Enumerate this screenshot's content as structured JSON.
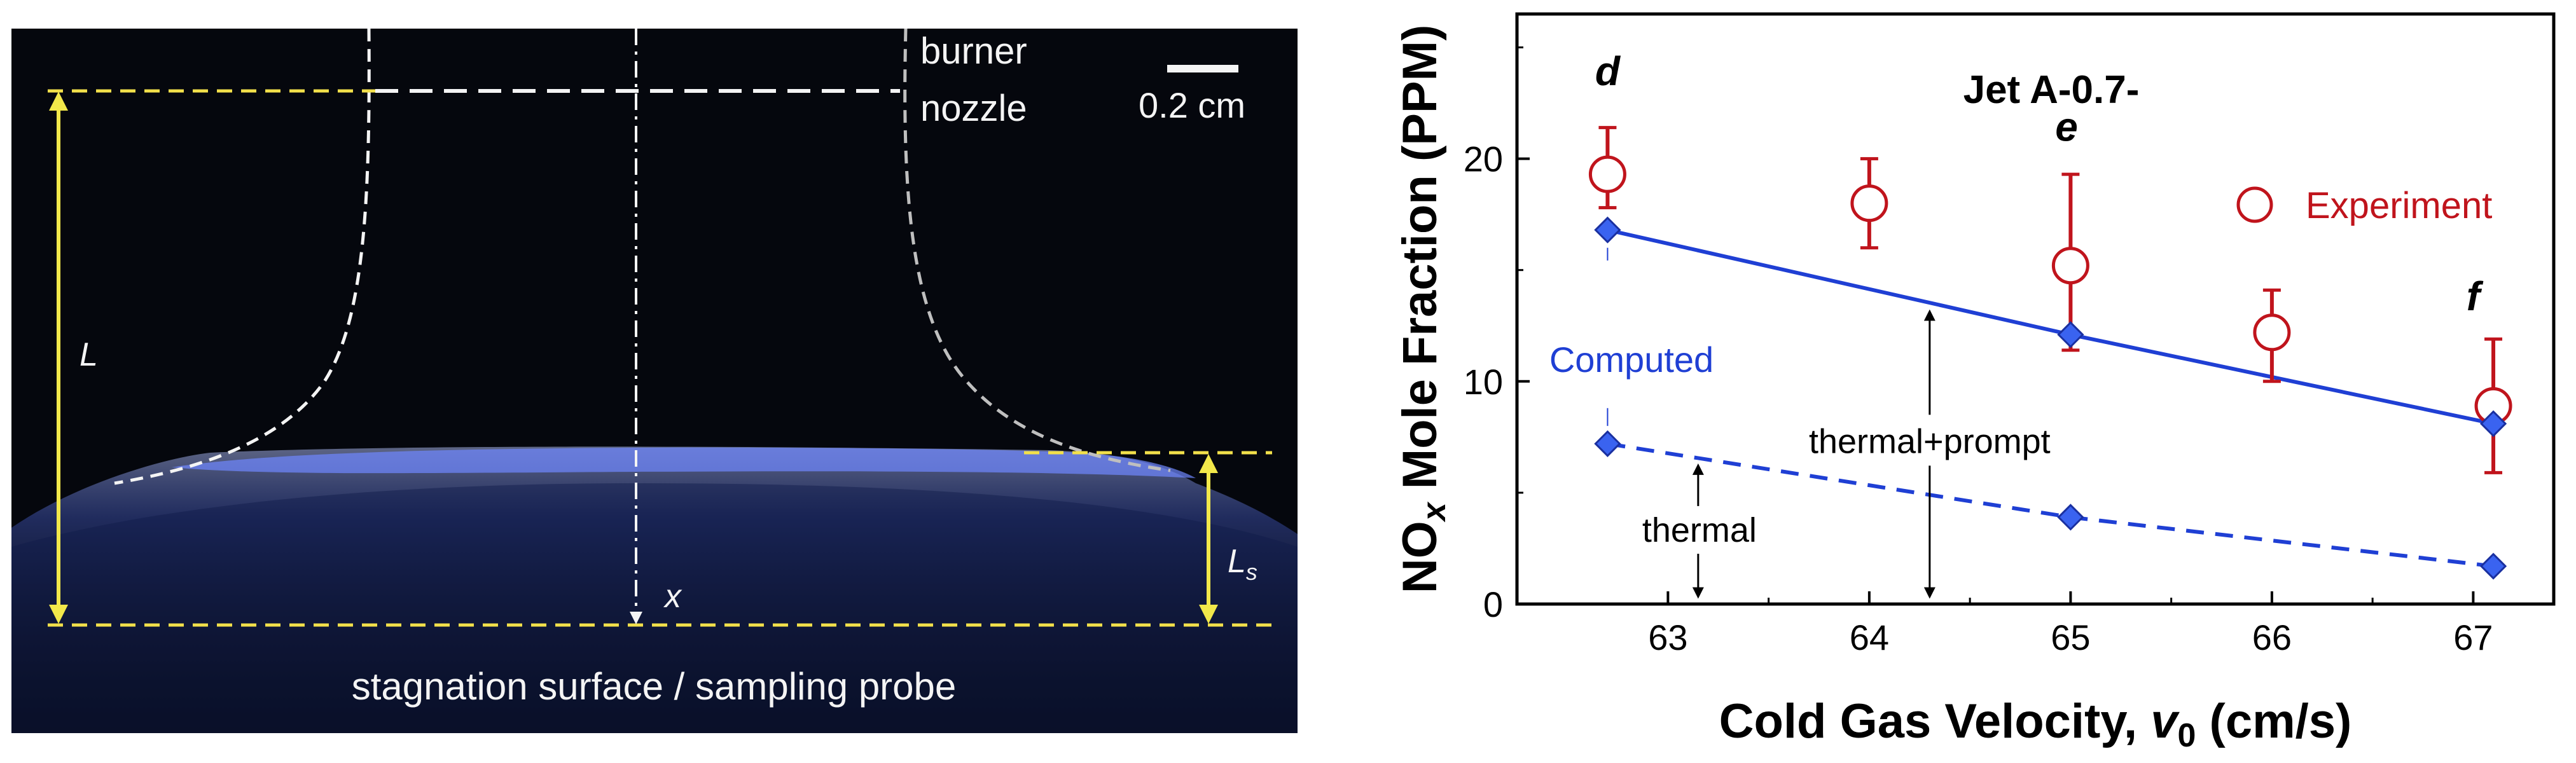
{
  "photo": {
    "burner_label_line1": "burner",
    "burner_label_line2": "nozzle",
    "scale_bar_label": "0.2 cm",
    "label_L": "L",
    "label_Ls_main": "L",
    "label_Ls_sub": "s",
    "label_x": "x",
    "bottom_label": "stagnation surface / sampling probe",
    "colors": {
      "background": "#05070d",
      "guide_lines": "#f2e04a",
      "arrows": "#f2e84a",
      "nozzle_outline": "#f4f4f4",
      "flame": "#4a6bd8"
    }
  },
  "chart_data": {
    "type": "scatter",
    "title": "Jet A-0.7-",
    "xlabel_prefix": "Cold Gas Velocity, ",
    "xlabel_var": "v",
    "xlabel_sub": "0",
    "xlabel_suffix": " (cm/s)",
    "ylabel_prefix": "NO",
    "ylabel_sub": "x",
    "ylabel_suffix": " Mole Fraction (PPM)",
    "xlim": [
      62.25,
      67.4
    ],
    "ylim": [
      0,
      26.5
    ],
    "xticks": [
      63,
      64,
      65,
      66,
      67
    ],
    "yticks": [
      0,
      10,
      20
    ],
    "experiment": {
      "name": "Experiment",
      "color": "#c0141c",
      "points": [
        {
          "x": 62.7,
          "y": 19.3,
          "err_lo": 1.5,
          "err_hi": 2.1
        },
        {
          "x": 64.0,
          "y": 18.0,
          "err_lo": 2.0,
          "err_hi": 2.0
        },
        {
          "x": 65.0,
          "y": 15.2,
          "err_lo": 3.8,
          "err_hi": 4.1
        },
        {
          "x": 66.0,
          "y": 12.2,
          "err_lo": 2.2,
          "err_hi": 1.9
        },
        {
          "x": 67.1,
          "y": 8.9,
          "err_lo": 3.0,
          "err_hi": 3.0
        }
      ]
    },
    "computed": {
      "label": "Computed",
      "color": "#1f3fd4",
      "thermal_prompt": [
        {
          "x": 62.7,
          "y": 16.8
        },
        {
          "x": 65.0,
          "y": 12.1
        },
        {
          "x": 67.1,
          "y": 8.1
        }
      ],
      "thermal": [
        {
          "x": 62.7,
          "y": 7.2
        },
        {
          "x": 65.0,
          "y": 3.9
        },
        {
          "x": 67.1,
          "y": 1.7
        }
      ]
    },
    "point_labels": [
      {
        "text": "d",
        "x": 62.7,
        "y": 23.3
      },
      {
        "text": "e",
        "x": 64.98,
        "y": 20.8
      },
      {
        "text": "f",
        "x": 67.0,
        "y": 13.2
      }
    ],
    "annotations": {
      "thermal_prompt_label": "thermal+prompt",
      "thermal_label": "thermal",
      "thermal_prompt_arrow_x": 64.3,
      "thermal_arrow_x": 63.15
    },
    "grid": false,
    "legend_position": "top-right"
  }
}
